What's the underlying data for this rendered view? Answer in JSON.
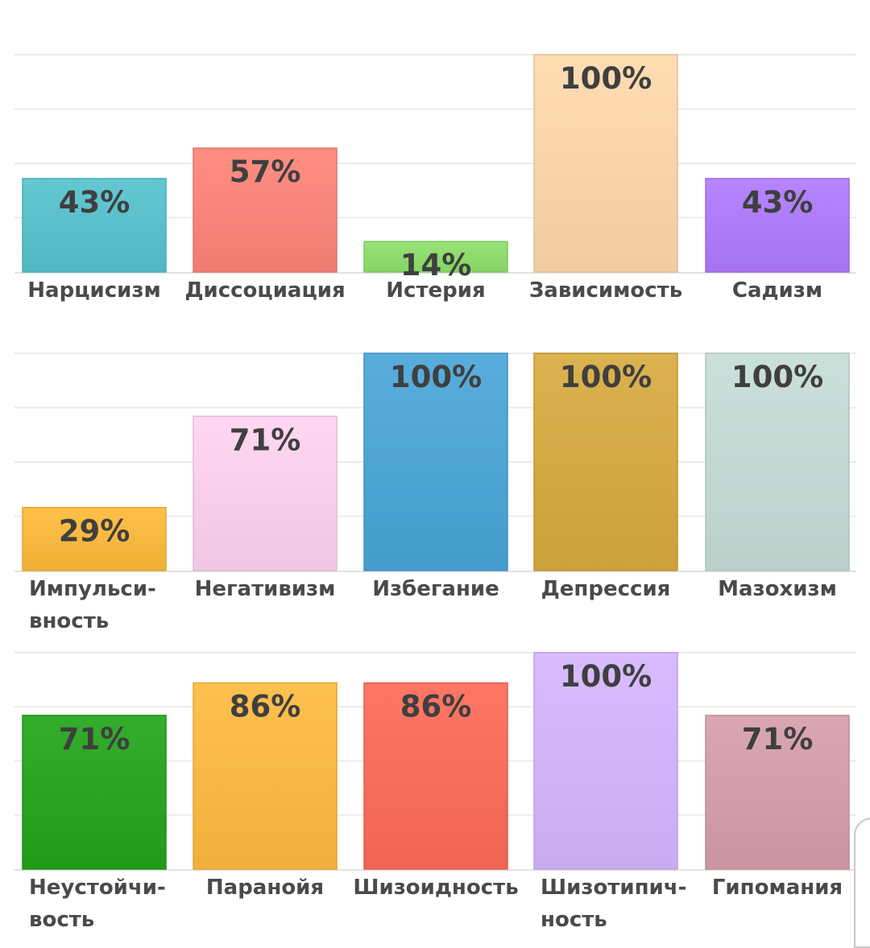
{
  "chart_data": [
    {
      "type": "bar",
      "ylim": [
        0,
        100
      ],
      "grid": true,
      "categories": [
        [
          "Нарцисизм"
        ],
        [
          "Диссоциация"
        ],
        [
          "Истерия"
        ],
        [
          "Зависимость"
        ],
        [
          "Садизм"
        ]
      ],
      "values": [
        43,
        57,
        14,
        100,
        43
      ],
      "value_labels": [
        "43%",
        "57%",
        "14%",
        "100%",
        "43%"
      ],
      "colors": [
        "#56c3cf",
        "#ff8478",
        "#8ee26a",
        "#ffd9ab",
        "#b07aff"
      ]
    },
    {
      "type": "bar",
      "ylim": [
        0,
        100
      ],
      "grid": true,
      "categories": [
        [
          "Импульси-",
          "вность"
        ],
        [
          "Негативизм"
        ],
        [
          "Избегание"
        ],
        [
          "Депрессия"
        ],
        [
          "Мазохизм"
        ]
      ],
      "values": [
        29,
        71,
        100,
        100,
        100
      ],
      "value_labels": [
        "29%",
        "71%",
        "100%",
        "100%",
        "100%"
      ],
      "colors": [
        "#ffbb3a",
        "#ffd3f2",
        "#49a6d9",
        "#d8ab40",
        "#c8ddd8"
      ]
    },
    {
      "type": "bar",
      "ylim": [
        0,
        100
      ],
      "grid": true,
      "categories": [
        [
          "Неустойчи-",
          "вость"
        ],
        [
          "Паранойя"
        ],
        [
          "Шизоидность"
        ],
        [
          "Шизотипич-",
          "ность"
        ],
        [
          "Гипомания"
        ]
      ],
      "values": [
        71,
        86,
        86,
        100,
        71
      ],
      "value_labels": [
        "71%",
        "86%",
        "86%",
        "100%",
        "71%"
      ],
      "colors": [
        "#22a51a",
        "#ffbb40",
        "#ff6a58",
        "#d6b6ff",
        "#d79ead"
      ]
    }
  ]
}
